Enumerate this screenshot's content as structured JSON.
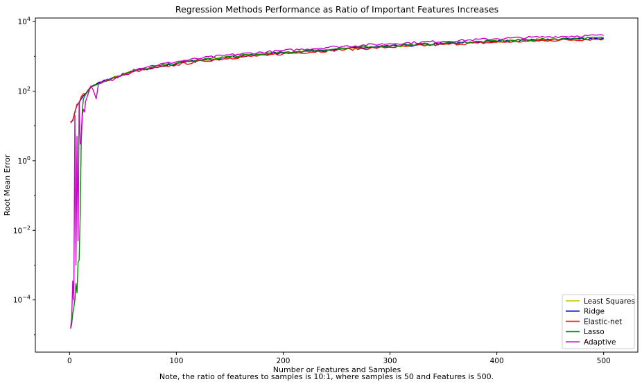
{
  "chart_data": {
    "type": "line",
    "title": "Regression Methods Performance as Ratio of Important Features Increases",
    "xlabel": "Number or Features and Samples",
    "ylabel": "Root Mean Error",
    "caption": "Note, the ratio of features to samples is 10:1, where samples is 50 and Features is 500.",
    "xscale": "linear",
    "yscale": "log",
    "xlim": [
      -32,
      532
    ],
    "ylim_log10": [
      -5.5,
      4.1
    ],
    "xticks": [
      0,
      100,
      200,
      300,
      400,
      500
    ],
    "xtick_labels": [
      "0",
      "100",
      "200",
      "300",
      "400",
      "500"
    ],
    "yticks_log10": [
      -4,
      -2,
      0,
      2,
      4
    ],
    "ytick_base": "10",
    "ytick_exponents": [
      "−4",
      "−2",
      "0",
      "2",
      "4"
    ],
    "grid": false,
    "legend_position": "lower-right",
    "series": [
      {
        "name": "Least Squares",
        "color": "#bfbf00",
        "x": [
          1,
          3,
          5,
          7,
          9,
          11,
          13,
          15,
          18,
          20,
          25,
          30,
          35,
          40,
          50,
          60,
          75,
          100,
          125,
          150,
          200,
          250,
          300,
          350,
          400,
          450,
          500
        ],
        "y": [
          13,
          14,
          26,
          40,
          48,
          62,
          75,
          85,
          115,
          138,
          160,
          185,
          210,
          245,
          300,
          380,
          460,
          620,
          790,
          960,
          1260,
          1620,
          1950,
          2320,
          2700,
          3050,
          3350
        ]
      },
      {
        "name": "Ridge",
        "color": "#0000cc",
        "x": [
          1,
          3,
          5,
          7,
          9,
          11,
          13,
          15,
          18,
          20,
          25,
          30,
          35,
          40,
          50,
          60,
          75,
          100,
          125,
          150,
          200,
          250,
          300,
          350,
          400,
          450,
          500
        ],
        "y": [
          13,
          14,
          25,
          39,
          47,
          60,
          73,
          84,
          112,
          135,
          158,
          183,
          205,
          240,
          295,
          375,
          455,
          610,
          780,
          950,
          1250,
          1600,
          1930,
          2300,
          2680,
          3020,
          3300
        ]
      },
      {
        "name": "Elastic-net",
        "color": "#ee1111",
        "x": [
          1,
          3,
          5,
          7,
          9,
          11,
          13,
          15,
          18,
          20,
          25,
          30,
          35,
          40,
          50,
          60,
          75,
          100,
          125,
          150,
          200,
          250,
          300,
          350,
          400,
          450,
          500
        ],
        "y": [
          12,
          15,
          24,
          42,
          45,
          70,
          85,
          82,
          110,
          130,
          150,
          170,
          195,
          230,
          285,
          360,
          430,
          570,
          730,
          890,
          1180,
          1510,
          1830,
          2180,
          2530,
          2860,
          3150
        ]
      },
      {
        "name": "Lasso",
        "color": "#008800",
        "x": [
          1,
          2,
          3,
          4,
          5,
          6,
          7,
          8,
          9,
          10,
          11,
          12,
          13,
          15,
          18,
          20,
          25,
          30,
          35,
          40,
          50,
          60,
          75,
          100,
          125,
          150,
          200,
          250,
          300,
          350,
          400,
          450,
          500
        ],
        "y": [
          1.5e-05,
          2e-05,
          4e-05,
          6e-05,
          0.0001,
          0.0003,
          0.00016,
          0.0012,
          0.0014,
          0.03,
          5,
          30,
          60,
          80,
          105,
          130,
          155,
          180,
          205,
          240,
          300,
          385,
          470,
          640,
          810,
          980,
          1290,
          1650,
          2000,
          2380,
          2760,
          3100,
          3400
        ]
      },
      {
        "name": "Adaptive",
        "color": "#cc00cc",
        "x": [
          1,
          2,
          3,
          4,
          5,
          6,
          7,
          8,
          9,
          10,
          11,
          12,
          13,
          14,
          15,
          18,
          20,
          22,
          25,
          27,
          30,
          35,
          40,
          45,
          50,
          55,
          60,
          75,
          100,
          125,
          150,
          200,
          250,
          300,
          350,
          400,
          450,
          500
        ],
        "y": [
          1.5e-05,
          3e-05,
          0.00035,
          0.0001,
          20,
          0.001,
          5,
          0.005,
          50,
          3,
          4,
          20,
          30,
          25,
          50,
          95,
          140,
          110,
          60,
          160,
          180,
          220,
          200,
          260,
          330,
          300,
          420,
          520,
          700,
          900,
          1100,
          1450,
          1900,
          2300,
          2700,
          3200,
          3650,
          4000
        ]
      }
    ]
  }
}
